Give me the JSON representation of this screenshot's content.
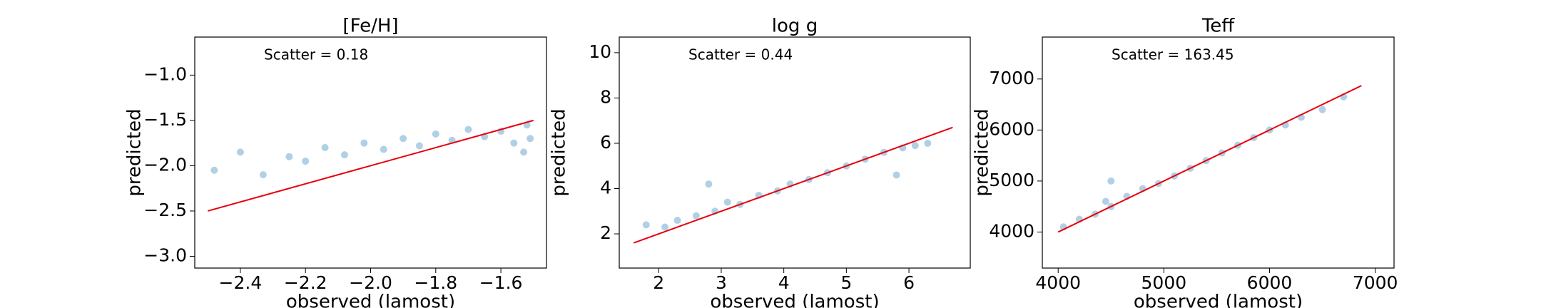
{
  "chart_data": [
    {
      "type": "scatter",
      "title": "[Fe/H]",
      "x_label": "observed (lamost)",
      "y_label": "predicted",
      "annotation": "Scatter = 0.18",
      "color": "#1f77b4",
      "line_color": "#e8000b",
      "x": [
        -2.48,
        -2.4,
        -2.33,
        -2.25,
        -2.2,
        -2.14,
        -2.08,
        -2.02,
        -1.96,
        -1.9,
        -1.85,
        -1.8,
        -1.75,
        -1.7,
        -1.65,
        -1.6,
        -1.56,
        -1.52,
        -1.51,
        -1.53
      ],
      "values": [
        -2.05,
        -1.85,
        -2.1,
        -1.9,
        -1.95,
        -1.8,
        -1.88,
        -1.75,
        -1.82,
        -1.7,
        -1.78,
        -1.65,
        -1.72,
        -1.6,
        -1.68,
        -1.62,
        -1.75,
        -1.55,
        -1.7,
        -1.85
      ],
      "line": {
        "x": [
          -2.5,
          -1.5
        ],
        "y": [
          -2.5,
          -1.5
        ]
      },
      "xlim": [
        -2.54,
        -1.46
      ],
      "ylim": [
        -3.13,
        -0.58
      ],
      "xticks": [
        {
          "value": -2.4,
          "label": "−2.4"
        },
        {
          "value": -2.2,
          "label": "−2.2"
        },
        {
          "value": -2.0,
          "label": "−2.0"
        },
        {
          "value": -1.8,
          "label": "−1.8"
        },
        {
          "value": -1.6,
          "label": "−1.6"
        }
      ],
      "yticks": [
        {
          "value": -3.0,
          "label": "−3.0"
        },
        {
          "value": -2.5,
          "label": "−2.5"
        },
        {
          "value": -2.0,
          "label": "−2.0"
        },
        {
          "value": -1.5,
          "label": "−1.5"
        },
        {
          "value": -1.0,
          "label": "−1.0"
        }
      ]
    },
    {
      "type": "scatter",
      "title": "log g",
      "x_label": "observed (lamost)",
      "y_label": "predicted",
      "annotation": "Scatter = 0.44",
      "color": "#1f77b4",
      "line_color": "#e8000b",
      "x": [
        1.8,
        2.1,
        2.3,
        2.6,
        2.9,
        3.1,
        3.3,
        3.6,
        3.9,
        4.1,
        4.4,
        4.7,
        5.0,
        5.3,
        5.6,
        5.9,
        6.1,
        6.3,
        5.8,
        2.8
      ],
      "values": [
        2.4,
        2.3,
        2.6,
        2.8,
        3.0,
        3.4,
        3.3,
        3.7,
        3.9,
        4.2,
        4.4,
        4.7,
        5.0,
        5.3,
        5.6,
        5.8,
        5.9,
        6.0,
        4.6,
        4.2
      ],
      "line": {
        "x": [
          1.6,
          6.7
        ],
        "y": [
          1.6,
          6.7
        ]
      },
      "xlim": [
        1.37,
        6.98
      ],
      "ylim": [
        0.49,
        10.69
      ],
      "xticks": [
        2,
        3,
        4,
        5,
        6
      ],
      "yticks": [
        2,
        4,
        6,
        8,
        10
      ]
    },
    {
      "type": "scatter",
      "title": "Teff",
      "x_label": "observed (lamost)",
      "y_label": "predicted",
      "annotation": "Scatter = 163.45",
      "color": "#1f77b4",
      "line_color": "#e8000b",
      "x": [
        4050,
        4200,
        4350,
        4450,
        4500,
        4650,
        4800,
        4950,
        5100,
        5250,
        5400,
        5550,
        5700,
        5850,
        6000,
        6150,
        6300,
        6500,
        6700,
        4500
      ],
      "values": [
        4100,
        4250,
        4350,
        4600,
        4500,
        4700,
        4850,
        4950,
        5100,
        5250,
        5400,
        5550,
        5700,
        5850,
        6000,
        6100,
        6250,
        6400,
        6650,
        5000
      ],
      "line": {
        "x": [
          4000,
          6870
        ],
        "y": [
          4000,
          6870
        ]
      },
      "xlim": [
        3850,
        7178
      ],
      "ylim": [
        3293,
        7822
      ],
      "xticks": [
        4000,
        5000,
        6000,
        7000
      ],
      "yticks": [
        4000,
        5000,
        6000,
        7000
      ]
    }
  ]
}
